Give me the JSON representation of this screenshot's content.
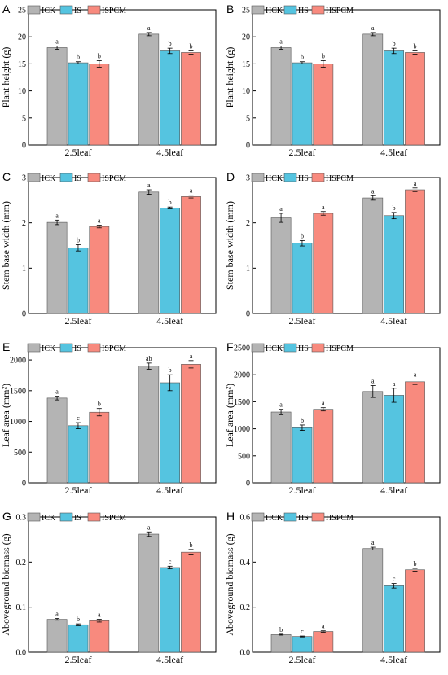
{
  "chart_data": [
    {
      "panel": "A",
      "type": "bar",
      "ylabel": "Plant height (g)",
      "ylim": [
        0,
        25
      ],
      "yticks": [
        0,
        5,
        10,
        15,
        20,
        25
      ],
      "categories": [
        "2.5leaf",
        "4.5leaf"
      ],
      "series": [
        {
          "name": "ICK",
          "color": "#b4b4b4",
          "values": [
            18.0,
            20.5
          ],
          "err": [
            0.3,
            0.3
          ],
          "sig": [
            "a",
            "a"
          ]
        },
        {
          "name": "IS",
          "color": "#55c4e0",
          "values": [
            15.2,
            17.4
          ],
          "err": [
            0.2,
            0.5
          ],
          "sig": [
            "b",
            "b"
          ]
        },
        {
          "name": "ISPCM",
          "color": "#f88a7e",
          "values": [
            15.0,
            17.1
          ],
          "err": [
            0.6,
            0.3
          ],
          "sig": [
            "b",
            "b"
          ]
        }
      ]
    },
    {
      "panel": "B",
      "type": "bar",
      "ylabel": "Plant height (g)",
      "ylim": [
        0,
        25
      ],
      "yticks": [
        0,
        5,
        10,
        15,
        20,
        25
      ],
      "categories": [
        "2.5leaf",
        "4.5leaf"
      ],
      "series": [
        {
          "name": "HCK",
          "color": "#b4b4b4",
          "values": [
            18.0,
            20.5
          ],
          "err": [
            0.3,
            0.3
          ],
          "sig": [
            "a",
            "a"
          ]
        },
        {
          "name": "HS",
          "color": "#55c4e0",
          "values": [
            15.2,
            17.4
          ],
          "err": [
            0.2,
            0.5
          ],
          "sig": [
            "b",
            "b"
          ]
        },
        {
          "name": "HSPCM",
          "color": "#f88a7e",
          "values": [
            15.0,
            17.1
          ],
          "err": [
            0.6,
            0.3
          ],
          "sig": [
            "b",
            "b"
          ]
        }
      ]
    },
    {
      "panel": "C",
      "type": "bar",
      "ylabel": "Stem base width (mm)",
      "ylim": [
        0,
        3
      ],
      "yticks": [
        0,
        1,
        2,
        3
      ],
      "categories": [
        "2.5leaf",
        "4.5leaf"
      ],
      "series": [
        {
          "name": "ICK",
          "color": "#b4b4b4",
          "values": [
            2.01,
            2.68
          ],
          "err": [
            0.05,
            0.05
          ],
          "sig": [
            "a",
            "a"
          ]
        },
        {
          "name": "IS",
          "color": "#55c4e0",
          "values": [
            1.45,
            2.33
          ],
          "err": [
            0.07,
            0.02
          ],
          "sig": [
            "b",
            "b"
          ]
        },
        {
          "name": "ISPCM",
          "color": "#f88a7e",
          "values": [
            1.92,
            2.58
          ],
          "err": [
            0.03,
            0.03
          ],
          "sig": [
            "a",
            "a"
          ]
        }
      ]
    },
    {
      "panel": "D",
      "type": "bar",
      "ylabel": "Stem base width (mm)",
      "ylim": [
        0,
        3
      ],
      "yticks": [
        0,
        1,
        2,
        3
      ],
      "categories": [
        "2.5leaf",
        "4.5leaf"
      ],
      "series": [
        {
          "name": "HCK",
          "color": "#b4b4b4",
          "values": [
            2.11,
            2.55
          ],
          "err": [
            0.1,
            0.05
          ],
          "sig": [
            "a",
            "a"
          ]
        },
        {
          "name": "HS",
          "color": "#55c4e0",
          "values": [
            1.55,
            2.16
          ],
          "err": [
            0.06,
            0.07
          ],
          "sig": [
            "b",
            "b"
          ]
        },
        {
          "name": "HSPCM",
          "color": "#f88a7e",
          "values": [
            2.21,
            2.73
          ],
          "err": [
            0.04,
            0.04
          ],
          "sig": [
            "a",
            "a"
          ]
        }
      ]
    },
    {
      "panel": "E",
      "type": "bar",
      "ylabel": "Leaf area (mm²)",
      "ylim": [
        0,
        2200
      ],
      "yticks": [
        0,
        500,
        1000,
        1500,
        2000
      ],
      "categories": [
        "2.5leaf",
        "4.5leaf"
      ],
      "series": [
        {
          "name": "ICK",
          "color": "#b4b4b4",
          "values": [
            1380,
            1900
          ],
          "err": [
            30,
            50
          ],
          "sig": [
            "a",
            "ab"
          ]
        },
        {
          "name": "IS",
          "color": "#55c4e0",
          "values": [
            930,
            1630
          ],
          "err": [
            50,
            130
          ],
          "sig": [
            "c",
            "b"
          ]
        },
        {
          "name": "ISPCM",
          "color": "#f88a7e",
          "values": [
            1150,
            1930
          ],
          "err": [
            60,
            60
          ],
          "sig": [
            "b",
            "a"
          ]
        }
      ]
    },
    {
      "panel": "F",
      "type": "bar",
      "ylabel": "Leaf area (mm²)",
      "ylim": [
        0,
        2500
      ],
      "yticks": [
        0,
        500,
        1000,
        1500,
        2000,
        2500
      ],
      "categories": [
        "2.5leaf",
        "4.5leaf"
      ],
      "series": [
        {
          "name": "HCK",
          "color": "#b4b4b4",
          "values": [
            1310,
            1690
          ],
          "err": [
            50,
            110
          ],
          "sig": [
            "a",
            "a"
          ]
        },
        {
          "name": "HS",
          "color": "#55c4e0",
          "values": [
            1020,
            1620
          ],
          "err": [
            50,
            130
          ],
          "sig": [
            "b",
            "a"
          ]
        },
        {
          "name": "HSPCM",
          "color": "#f88a7e",
          "values": [
            1360,
            1870
          ],
          "err": [
            30,
            50
          ],
          "sig": [
            "a",
            "a"
          ]
        }
      ]
    },
    {
      "panel": "G",
      "type": "bar",
      "ylabel": "Aboveground biomass (g)",
      "ylim": [
        0,
        0.3
      ],
      "yticks": [
        0.0,
        0.1,
        0.2,
        0.3
      ],
      "categories": [
        "2.5leaf",
        "4.5leaf"
      ],
      "series": [
        {
          "name": "ICK",
          "color": "#b4b4b4",
          "values": [
            0.073,
            0.262
          ],
          "err": [
            0.002,
            0.005
          ],
          "sig": [
            "a",
            "a"
          ]
        },
        {
          "name": "IS",
          "color": "#55c4e0",
          "values": [
            0.061,
            0.188
          ],
          "err": [
            0.002,
            0.003
          ],
          "sig": [
            "b",
            "c"
          ]
        },
        {
          "name": "ISPCM",
          "color": "#f88a7e",
          "values": [
            0.07,
            0.222
          ],
          "err": [
            0.003,
            0.006
          ],
          "sig": [
            "a",
            "b"
          ]
        }
      ]
    },
    {
      "panel": "H",
      "type": "bar",
      "ylabel": "Aboveground biomass (g)",
      "ylim": [
        0,
        0.6
      ],
      "yticks": [
        0.0,
        0.2,
        0.4,
        0.6
      ],
      "categories": [
        "2.5leaf",
        "4.5leaf"
      ],
      "series": [
        {
          "name": "HCK",
          "color": "#b4b4b4",
          "values": [
            0.078,
            0.46
          ],
          "err": [
            0.002,
            0.006
          ],
          "sig": [
            "b",
            "a"
          ]
        },
        {
          "name": "HS",
          "color": "#55c4e0",
          "values": [
            0.07,
            0.295
          ],
          "err": [
            0.002,
            0.01
          ],
          "sig": [
            "c",
            "c"
          ]
        },
        {
          "name": "HSPCM",
          "color": "#f88a7e",
          "values": [
            0.092,
            0.366
          ],
          "err": [
            0.003,
            0.006
          ],
          "sig": [
            "a",
            "b"
          ]
        }
      ]
    }
  ]
}
